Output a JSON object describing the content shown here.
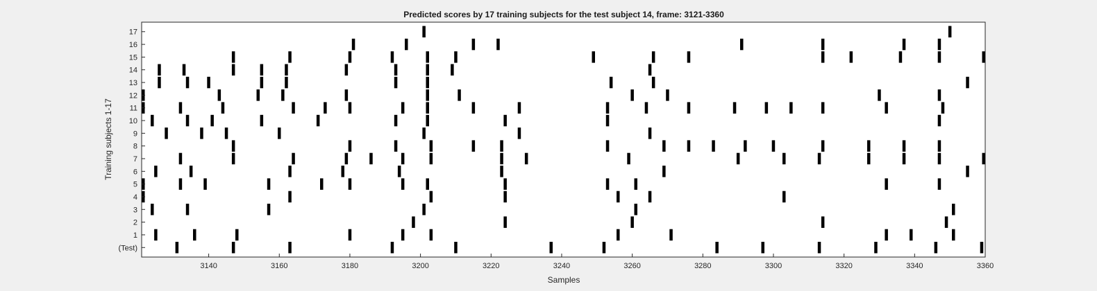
{
  "chart_data": {
    "type": "raster",
    "title": "Predicted scores by 17 training subjects for the test subject 14, frame: 3121-3360",
    "xlabel": "Samples",
    "ylabel": "Training subjects 1-17",
    "xlim": [
      3121,
      3360
    ],
    "xticks": [
      3140,
      3160,
      3180,
      3200,
      3220,
      3240,
      3260,
      3280,
      3300,
      3320,
      3340,
      3360
    ],
    "yticklabels": [
      "(Test)",
      "1",
      "2",
      "3",
      "4",
      "5",
      "6",
      "7",
      "8",
      "9",
      "10",
      "11",
      "12",
      "13",
      "14",
      "15",
      "16",
      "17"
    ],
    "grid": false,
    "rows": [
      {
        "label": "(Test)",
        "x": [
          3131,
          3147,
          3163,
          3192,
          3210,
          3237,
          3252,
          3284,
          3297,
          3313,
          3329,
          3346,
          3359
        ]
      },
      {
        "label": "1",
        "x": [
          3125,
          3136,
          3148,
          3180,
          3195,
          3203,
          3256,
          3271,
          3332,
          3339,
          3351
        ]
      },
      {
        "label": "2",
        "x": [
          3198,
          3224,
          3260,
          3314,
          3349
        ]
      },
      {
        "label": "3",
        "x": [
          3124,
          3134,
          3157,
          3201,
          3261,
          3351
        ]
      },
      {
        "label": "4",
        "x": [
          3121,
          3163,
          3203,
          3224,
          3256,
          3265,
          3303
        ]
      },
      {
        "label": "5",
        "x": [
          3121,
          3132,
          3139,
          3157,
          3172,
          3180,
          3195,
          3202,
          3224,
          3253,
          3261,
          3332,
          3347
        ]
      },
      {
        "label": "6",
        "x": [
          3125,
          3135,
          3163,
          3178,
          3194,
          3223,
          3269,
          3355
        ]
      },
      {
        "label": "7",
        "x": [
          3132,
          3147,
          3164,
          3179,
          3186,
          3195,
          3203,
          3223,
          3230,
          3259,
          3290,
          3303,
          3313,
          3327,
          3337,
          3347,
          3360
        ]
      },
      {
        "label": "8",
        "x": [
          3147,
          3180,
          3193,
          3203,
          3215,
          3223,
          3253,
          3269,
          3276,
          3283,
          3292,
          3300,
          3314,
          3327,
          3337,
          3347
        ]
      },
      {
        "label": "9",
        "x": [
          3128,
          3138,
          3145,
          3160,
          3201,
          3228,
          3265
        ]
      },
      {
        "label": "10",
        "x": [
          3124,
          3134,
          3141,
          3155,
          3171,
          3193,
          3202,
          3224,
          3253,
          3347
        ]
      },
      {
        "label": "11",
        "x": [
          3121,
          3132,
          3144,
          3164,
          3173,
          3180,
          3195,
          3202,
          3215,
          3228,
          3253,
          3264,
          3276,
          3289,
          3298,
          3305,
          3314,
          3332,
          3348
        ]
      },
      {
        "label": "12",
        "x": [
          3121,
          3143,
          3154,
          3161,
          3179,
          3202,
          3211,
          3260,
          3270,
          3330,
          3347
        ]
      },
      {
        "label": "13",
        "x": [
          3126,
          3134,
          3140,
          3155,
          3162,
          3193,
          3202,
          3254,
          3266,
          3355
        ]
      },
      {
        "label": "14",
        "x": [
          3126,
          3133,
          3147,
          3155,
          3162,
          3179,
          3193,
          3202,
          3209,
          3265
        ]
      },
      {
        "label": "15",
        "x": [
          3147,
          3163,
          3180,
          3192,
          3202,
          3210,
          3249,
          3266,
          3276,
          3314,
          3322,
          3336,
          3347,
          3360
        ]
      },
      {
        "label": "16",
        "x": [
          3181,
          3196,
          3215,
          3222,
          3291,
          3314,
          3337,
          3347
        ]
      },
      {
        "label": "17",
        "x": [
          3201,
          3350
        ]
      }
    ],
    "colors": {
      "mark": "#000000",
      "plot_bg": "#ffffff",
      "axis": "#262626",
      "figure_bg": "#f0f0f0"
    }
  }
}
